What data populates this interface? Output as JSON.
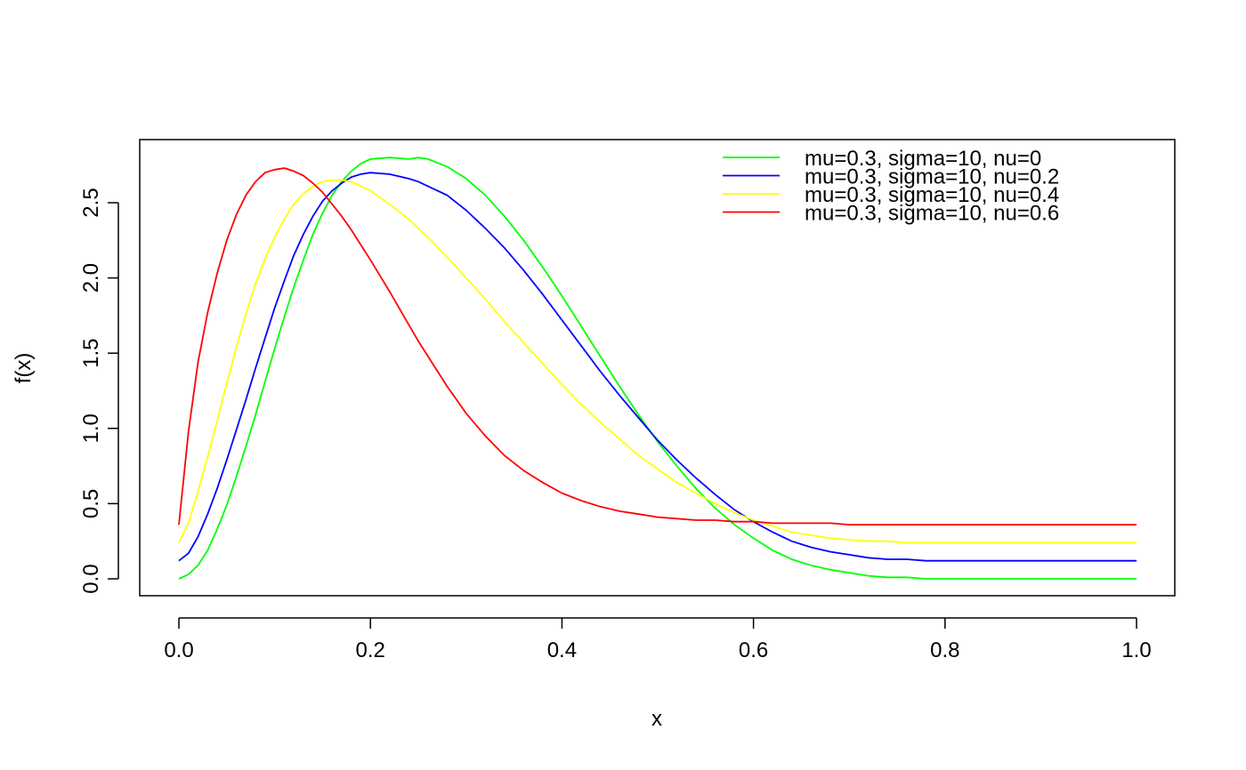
{
  "chart_data": {
    "type": "line",
    "xlabel": "x",
    "ylabel": "f(x)",
    "xlim": [
      0,
      1
    ],
    "ylim": [
      0,
      2.8
    ],
    "grid": false,
    "legend_position": "top-right",
    "x_ticks": [
      "0.0",
      "0.2",
      "0.4",
      "0.6",
      "0.8",
      "1.0"
    ],
    "x_tick_values": [
      0,
      0.2,
      0.4,
      0.6,
      0.8,
      1.0
    ],
    "y_ticks": [
      "0.0",
      "0.5",
      "1.0",
      "1.5",
      "2.0",
      "2.5"
    ],
    "y_tick_values": [
      0,
      0.5,
      1.0,
      1.5,
      2.0,
      2.5
    ],
    "x": [
      0.0,
      0.01,
      0.02,
      0.03,
      0.04,
      0.05,
      0.06,
      0.07,
      0.08,
      0.09,
      0.1,
      0.11,
      0.12,
      0.13,
      0.14,
      0.15,
      0.16,
      0.17,
      0.18,
      0.19,
      0.2,
      0.22,
      0.24,
      0.25,
      0.26,
      0.28,
      0.3,
      0.32,
      0.34,
      0.36,
      0.38,
      0.4,
      0.42,
      0.44,
      0.46,
      0.48,
      0.5,
      0.52,
      0.54,
      0.56,
      0.58,
      0.6,
      0.62,
      0.64,
      0.66,
      0.68,
      0.7,
      0.72,
      0.74,
      0.76,
      0.78,
      0.8,
      0.84,
      0.88,
      0.92,
      0.96,
      1.0
    ],
    "series": [
      {
        "name": "mu=0.3, sigma=10, nu=0",
        "color": "#00ff00",
        "values": [
          0.0,
          0.03,
          0.09,
          0.19,
          0.33,
          0.49,
          0.68,
          0.88,
          1.09,
          1.31,
          1.53,
          1.74,
          1.94,
          2.12,
          2.29,
          2.43,
          2.55,
          2.64,
          2.71,
          2.76,
          2.79,
          2.8,
          2.79,
          2.8,
          2.79,
          2.74,
          2.66,
          2.55,
          2.41,
          2.25,
          2.07,
          1.88,
          1.68,
          1.48,
          1.28,
          1.09,
          0.91,
          0.75,
          0.6,
          0.47,
          0.36,
          0.27,
          0.19,
          0.13,
          0.09,
          0.06,
          0.04,
          0.02,
          0.01,
          0.01,
          0.0,
          0.0,
          0.0,
          0.0,
          0.0,
          0.0,
          0.0
        ]
      },
      {
        "name": "mu=0.3, sigma=10, nu=0.2",
        "color": "#0000ff",
        "values": [
          0.12,
          0.17,
          0.28,
          0.43,
          0.6,
          0.79,
          0.99,
          1.19,
          1.4,
          1.6,
          1.8,
          1.98,
          2.15,
          2.29,
          2.41,
          2.51,
          2.58,
          2.63,
          2.67,
          2.69,
          2.7,
          2.69,
          2.66,
          2.64,
          2.61,
          2.55,
          2.45,
          2.33,
          2.2,
          2.05,
          1.89,
          1.72,
          1.55,
          1.38,
          1.22,
          1.07,
          0.92,
          0.79,
          0.67,
          0.56,
          0.46,
          0.38,
          0.31,
          0.25,
          0.21,
          0.18,
          0.16,
          0.14,
          0.13,
          0.13,
          0.12,
          0.12,
          0.12,
          0.12,
          0.12,
          0.12,
          0.12
        ]
      },
      {
        "name": "mu=0.3, sigma=10, nu=0.4",
        "color": "#ffff00",
        "values": [
          0.24,
          0.37,
          0.58,
          0.81,
          1.05,
          1.3,
          1.54,
          1.76,
          1.96,
          2.13,
          2.27,
          2.39,
          2.49,
          2.56,
          2.61,
          2.64,
          2.65,
          2.65,
          2.64,
          2.61,
          2.58,
          2.49,
          2.39,
          2.33,
          2.27,
          2.14,
          2.0,
          1.86,
          1.71,
          1.57,
          1.43,
          1.29,
          1.16,
          1.04,
          0.93,
          0.82,
          0.73,
          0.64,
          0.57,
          0.5,
          0.44,
          0.39,
          0.35,
          0.31,
          0.29,
          0.27,
          0.26,
          0.25,
          0.25,
          0.24,
          0.24,
          0.24,
          0.24,
          0.24,
          0.24,
          0.24,
          0.24
        ]
      },
      {
        "name": "mu=0.3, sigma=10, nu=0.6",
        "color": "#ff0000",
        "values": [
          0.36,
          0.98,
          1.44,
          1.77,
          2.03,
          2.25,
          2.42,
          2.55,
          2.64,
          2.7,
          2.72,
          2.73,
          2.71,
          2.68,
          2.63,
          2.57,
          2.49,
          2.41,
          2.32,
          2.22,
          2.12,
          1.91,
          1.69,
          1.58,
          1.48,
          1.28,
          1.1,
          0.95,
          0.82,
          0.72,
          0.64,
          0.57,
          0.52,
          0.48,
          0.45,
          0.43,
          0.41,
          0.4,
          0.39,
          0.39,
          0.38,
          0.38,
          0.37,
          0.37,
          0.37,
          0.37,
          0.36,
          0.36,
          0.36,
          0.36,
          0.36,
          0.36,
          0.36,
          0.36,
          0.36,
          0.36,
          0.36
        ]
      }
    ]
  }
}
